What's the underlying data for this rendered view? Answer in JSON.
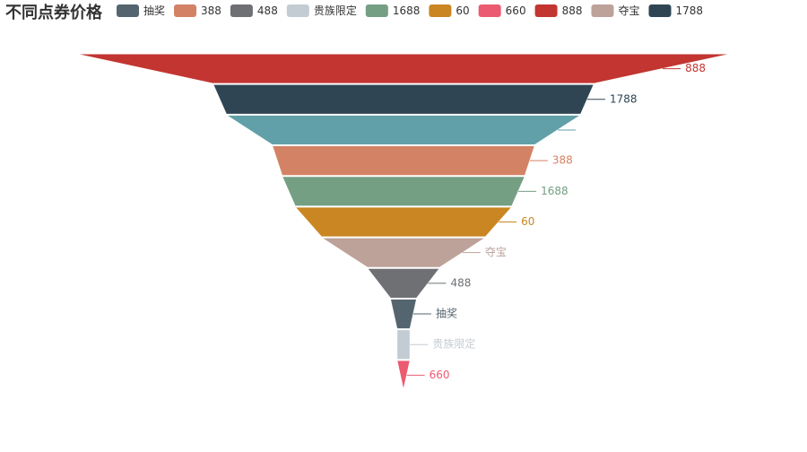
{
  "chart_data": {
    "type": "funnel",
    "title": "不同点券价格",
    "categories": [
      "抽奖",
      "388",
      "488",
      "贵族限定",
      "1688",
      "60",
      "660",
      "888",
      "夺宝",
      "1788",
      null
    ],
    "values": [
      4,
      40,
      11,
      2,
      37,
      33,
      2,
      100,
      25,
      58,
      54
    ],
    "colors": [
      "#546570",
      "#d48265",
      "#6e7074",
      "#c4ccd3",
      "#749f83",
      "#ca8622",
      "#eb5b72",
      "#c23531",
      "#bda29a",
      "#2f4554",
      "#61a0a8"
    ]
  }
}
